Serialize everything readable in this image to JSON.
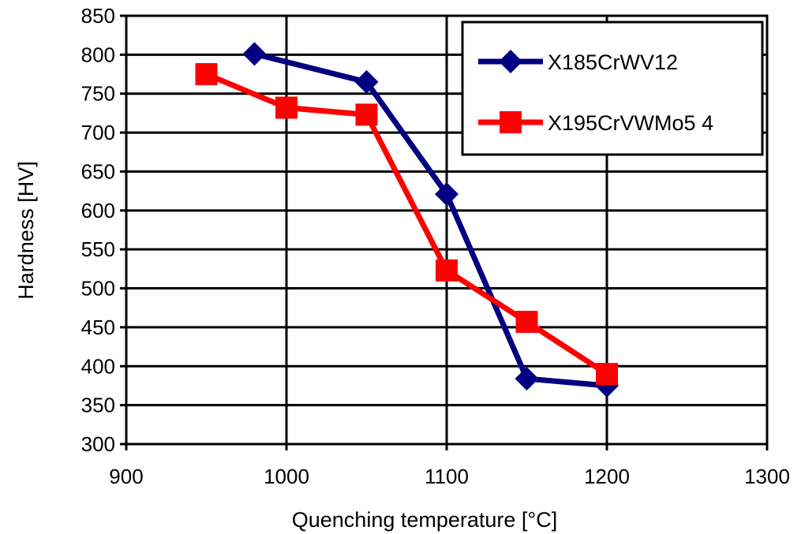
{
  "chart_data": {
    "type": "line",
    "title": "",
    "xlabel": "Quenching temperature [°C]",
    "ylabel": "Hardness [HV]",
    "xlim": [
      900,
      1300
    ],
    "ylim": [
      300,
      850
    ],
    "x_ticks": [
      900,
      1000,
      1100,
      1200,
      1300
    ],
    "y_ticks": [
      300,
      350,
      400,
      450,
      500,
      550,
      600,
      650,
      700,
      750,
      800,
      850
    ],
    "grid": true,
    "legend_position": "top-right",
    "series": [
      {
        "name": "X185CrWV12",
        "color": "#000080",
        "marker": "diamond",
        "x": [
          980,
          1050,
          1100,
          1150,
          1200
        ],
        "y": [
          801,
          765,
          621,
          384,
          375
        ]
      },
      {
        "name": "X195CrVWMo5 4",
        "color": "#ff0000",
        "marker": "square",
        "x": [
          950,
          1000,
          1050,
          1100,
          1150,
          1200
        ],
        "y": [
          775,
          732,
          723,
          523,
          457,
          390
        ]
      }
    ]
  }
}
